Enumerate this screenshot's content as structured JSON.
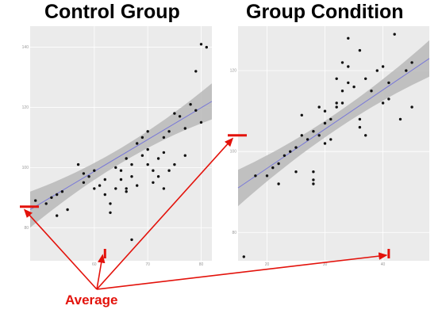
{
  "titles": {
    "left": "Control Group",
    "right": "Group Condition"
  },
  "annotation": {
    "label": "Average",
    "color": "#e3120b"
  },
  "colors": {
    "panel_bg": "#ebebeb",
    "grid": "#ffffff",
    "band": "#b9b9b9",
    "fit_line": "#7878d8",
    "point": "#111111"
  },
  "chart_data": [
    {
      "type": "scatter",
      "title": "Control Group",
      "xlabel": "",
      "ylabel": "",
      "xlim": [
        48,
        82
      ],
      "ylim": [
        69,
        147
      ],
      "x_ticks": [
        60,
        70,
        80
      ],
      "y_ticks": [
        80,
        100,
        120,
        140
      ],
      "grid": true,
      "fit": {
        "type": "linear",
        "x0": 48,
        "y0": 86,
        "x1": 82,
        "y1": 122,
        "band_halfwidth_ends": 6,
        "band_halfwidth_center": 2.5
      },
      "averages": {
        "x": 62,
        "y": 87
      },
      "points": [
        [
          49,
          89
        ],
        [
          51,
          88
        ],
        [
          52,
          90
        ],
        [
          53,
          91
        ],
        [
          53,
          84
        ],
        [
          54,
          92
        ],
        [
          55,
          86
        ],
        [
          57,
          101
        ],
        [
          58,
          98
        ],
        [
          58,
          95
        ],
        [
          59,
          97
        ],
        [
          60,
          99
        ],
        [
          60,
          93
        ],
        [
          61,
          94
        ],
        [
          62,
          96
        ],
        [
          62,
          91
        ],
        [
          63,
          88
        ],
        [
          63,
          85
        ],
        [
          64,
          100
        ],
        [
          64,
          93
        ],
        [
          65,
          99
        ],
        [
          65,
          96
        ],
        [
          66,
          103
        ],
        [
          66,
          92
        ],
        [
          67,
          101
        ],
        [
          67,
          97
        ],
        [
          68,
          94
        ],
        [
          68,
          108
        ],
        [
          69,
          104
        ],
        [
          69,
          110
        ],
        [
          70,
          112
        ],
        [
          70,
          106
        ],
        [
          70,
          101
        ],
        [
          71,
          99
        ],
        [
          71,
          95
        ],
        [
          72,
          103
        ],
        [
          72,
          97
        ],
        [
          73,
          105
        ],
        [
          73,
          110
        ],
        [
          74,
          112
        ],
        [
          74,
          99
        ],
        [
          75,
          118
        ],
        [
          75,
          101
        ],
        [
          76,
          117
        ],
        [
          77,
          113
        ],
        [
          77,
          104
        ],
        [
          78,
          121
        ],
        [
          79,
          119
        ],
        [
          80,
          115
        ],
        [
          79,
          132
        ],
        [
          80,
          141
        ],
        [
          81,
          140
        ],
        [
          67,
          76
        ],
        [
          66,
          93
        ],
        [
          73,
          93
        ]
      ]
    },
    {
      "type": "scatter",
      "title": "Group Condition",
      "xlabel": "",
      "ylabel": "",
      "xlim": [
        15,
        48
      ],
      "ylim": [
        73,
        131
      ],
      "x_ticks": [
        20,
        30,
        40
      ],
      "y_ticks": [
        80,
        100,
        120
      ],
      "grid": true,
      "fit": {
        "type": "linear",
        "x0": 15,
        "y0": 91,
        "x1": 48,
        "y1": 123,
        "band_halfwidth_ends": 4.5,
        "band_halfwidth_center": 2
      },
      "averages": {
        "x": 41,
        "y": 104
      },
      "points": [
        [
          16,
          74
        ],
        [
          18,
          94
        ],
        [
          20,
          94
        ],
        [
          21,
          96
        ],
        [
          22,
          92
        ],
        [
          22,
          97
        ],
        [
          23,
          99
        ],
        [
          24,
          100
        ],
        [
          25,
          101
        ],
        [
          25,
          95
        ],
        [
          26,
          104
        ],
        [
          26,
          109
        ],
        [
          27,
          103
        ],
        [
          28,
          105
        ],
        [
          28,
          93
        ],
        [
          28,
          92
        ],
        [
          28,
          95
        ],
        [
          29,
          111
        ],
        [
          29,
          104
        ],
        [
          30,
          107
        ],
        [
          30,
          110
        ],
        [
          30,
          102
        ],
        [
          31,
          108
        ],
        [
          31,
          103
        ],
        [
          32,
          112
        ],
        [
          32,
          111
        ],
        [
          32,
          118
        ],
        [
          33,
          112
        ],
        [
          33,
          115
        ],
        [
          33,
          122
        ],
        [
          34,
          121
        ],
        [
          34,
          117
        ],
        [
          35,
          116
        ],
        [
          36,
          108
        ],
        [
          36,
          106
        ],
        [
          37,
          104
        ],
        [
          37,
          118
        ],
        [
          38,
          115
        ],
        [
          39,
          120
        ],
        [
          40,
          121
        ],
        [
          40,
          112
        ],
        [
          41,
          113
        ],
        [
          41,
          117
        ],
        [
          42,
          129
        ],
        [
          43,
          108
        ],
        [
          44,
          120
        ],
        [
          45,
          122
        ],
        [
          45,
          111
        ],
        [
          36,
          125
        ],
        [
          34,
          128
        ]
      ]
    }
  ]
}
